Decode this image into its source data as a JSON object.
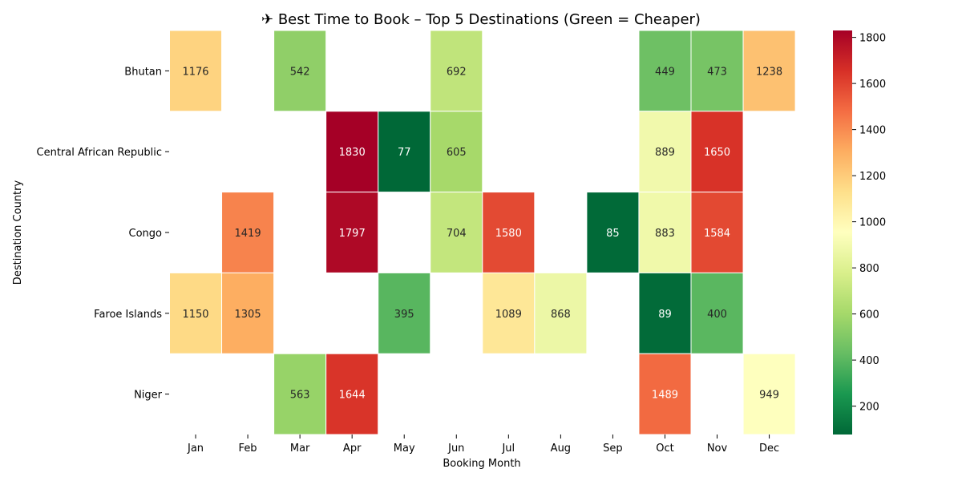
{
  "chart_data": {
    "type": "heatmap",
    "title": "✈ Best Time to Book – Top 5 Destinations (Green = Cheaper)",
    "xlabel": "Booking Month",
    "ylabel": "Destination Country",
    "x": [
      "Jan",
      "Feb",
      "Mar",
      "Apr",
      "May",
      "Jun",
      "Jul",
      "Aug",
      "Sep",
      "Oct",
      "Nov",
      "Dec"
    ],
    "y": [
      "Bhutan",
      "Central African Republic",
      "Congo",
      "Faroe Islands",
      "Niger"
    ],
    "values": [
      [
        1176,
        null,
        542,
        null,
        null,
        692,
        null,
        null,
        null,
        449,
        473,
        1238
      ],
      [
        null,
        null,
        null,
        1830,
        77,
        605,
        null,
        null,
        null,
        889,
        1650,
        null
      ],
      [
        null,
        1419,
        null,
        1797,
        null,
        704,
        1580,
        null,
        85,
        883,
        1584,
        null
      ],
      [
        1150,
        1305,
        null,
        null,
        395,
        null,
        1089,
        868,
        null,
        89,
        400,
        null
      ],
      [
        null,
        null,
        563,
        1644,
        null,
        null,
        null,
        null,
        null,
        1489,
        null,
        949
      ]
    ],
    "colormap": "RdYlGn_r",
    "vmin": 77,
    "vmax": 1830,
    "colorbar_ticks": [
      200,
      400,
      600,
      800,
      1000,
      1200,
      1400,
      1600,
      1800
    ],
    "annotated": true
  }
}
